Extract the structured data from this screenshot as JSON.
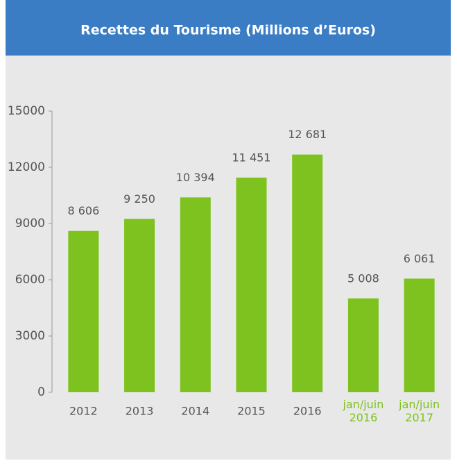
{
  "chart_data": {
    "type": "bar",
    "title": "Recettes du Tourisme (Millions d’Euros)",
    "categories": [
      "2012",
      "2013",
      "2014",
      "2015",
      "2016",
      "jan/juin 2016",
      "jan/juin 2017"
    ],
    "values": [
      8606,
      9250,
      10394,
      11451,
      12681,
      5008,
      6061
    ],
    "value_labels": [
      "8 606",
      "9 250",
      "10 394",
      "11 451",
      "12 681",
      "5 008",
      "6 061"
    ],
    "color": "#7dc21e",
    "category_colors": [
      "#555555",
      "#555555",
      "#555555",
      "#555555",
      "#555555",
      "#7dc21e",
      "#7dc21e"
    ],
    "ylim": [
      0,
      15000
    ],
    "yticks": [
      0,
      3000,
      6000,
      9000,
      12000,
      15000
    ],
    "grid": false
  }
}
